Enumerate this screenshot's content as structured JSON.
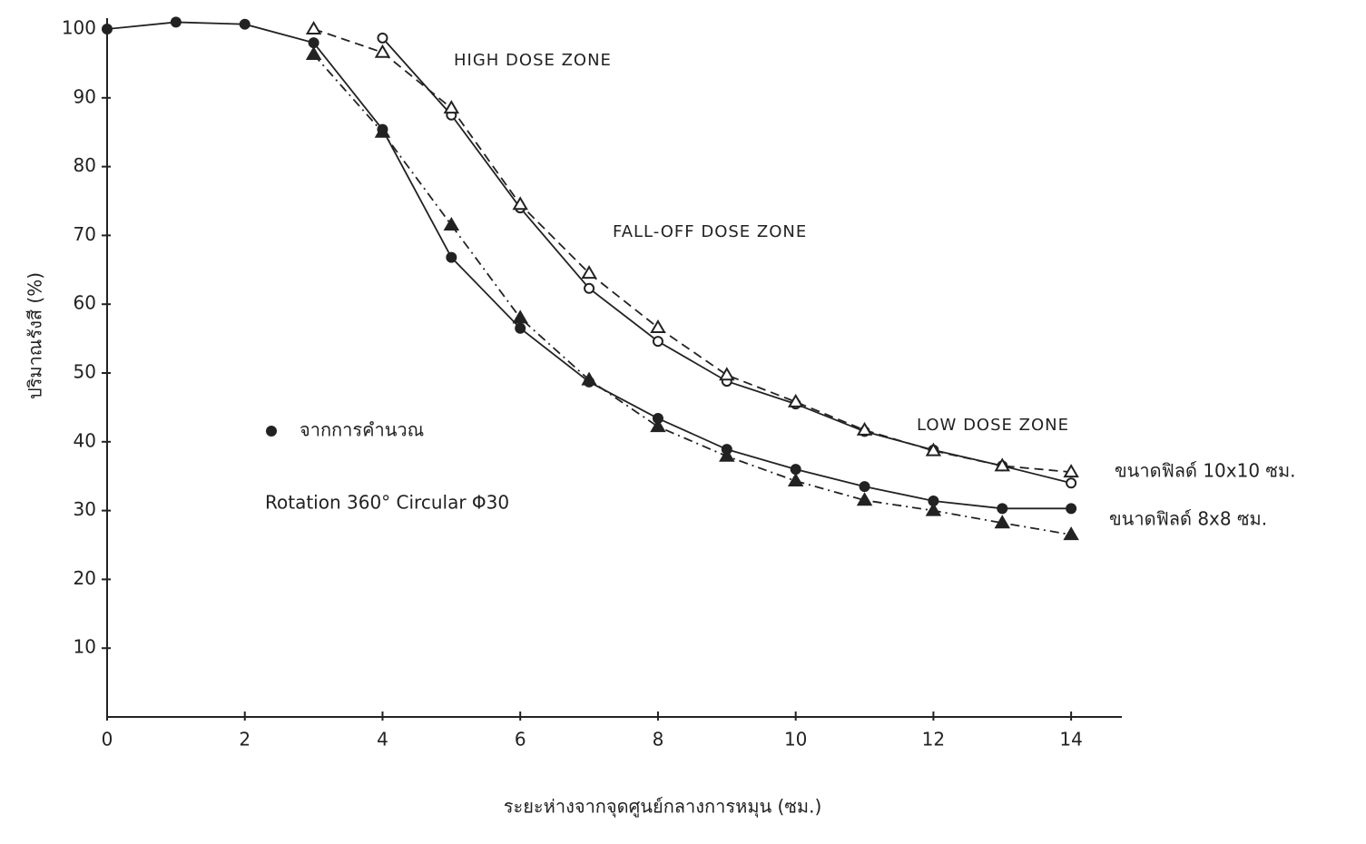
{
  "chart_data": {
    "type": "line",
    "y_label": "ปริมาณรังสี (%)",
    "x_label": "ระยะห่างจากจุดศูนย์กลางการหมุน (ซม.)",
    "x": [
      0,
      1,
      2,
      3,
      4,
      5,
      6,
      7,
      8,
      9,
      10,
      11,
      12,
      13,
      14
    ],
    "xlim": [
      0,
      15
    ],
    "xticks": [
      0,
      2,
      4,
      6,
      8,
      10,
      12,
      14
    ],
    "ylim": [
      0,
      100
    ],
    "yticks": [
      10,
      20,
      30,
      40,
      50,
      60,
      70,
      80,
      90,
      100
    ],
    "series": [
      {
        "color": "#222",
        "marker": "circle-filled",
        "dash": "solid",
        "values": [
          100,
          101,
          100.7,
          98,
          85.4,
          66.8,
          56.5,
          48.7,
          43.4,
          38.9,
          36,
          33.5,
          31.4,
          30.3,
          30.3
        ]
      },
      {
        "color": "#222",
        "marker": "triangle-filled",
        "dash": "dashdot",
        "values": [
          null,
          null,
          null,
          96.3,
          85,
          71.5,
          58,
          49,
          42.2,
          37.9,
          34.3,
          31.5,
          30,
          28.2,
          26.5
        ]
      },
      {
        "color": "#222",
        "marker": "circle-open",
        "dash": "solid",
        "values": [
          null,
          null,
          null,
          null,
          98.7,
          87.5,
          74,
          62.3,
          54.6,
          48.8,
          45.5,
          41.5,
          38.8,
          36.5,
          34
        ]
      },
      {
        "color": "#222",
        "marker": "triangle-open",
        "dash": "dashed",
        "values": [
          null,
          null,
          null,
          100,
          96.6,
          88.5,
          74.5,
          64.5,
          56.6,
          49.7,
          45.8,
          41.7,
          38.7,
          36.5,
          35.6
        ]
      }
    ],
    "legend_text": "จากการคำนวณ",
    "annotations": [
      "HIGH DOSE ZONE",
      "FALL-OFF DOSE ZONE",
      "LOW DOSE ZONE",
      "Rotation 360°   Circular Φ30",
      "ขนาดฟิลด์ 10x10 ซม.",
      "ขนาดฟิลด์ 8x8 ซม."
    ]
  }
}
